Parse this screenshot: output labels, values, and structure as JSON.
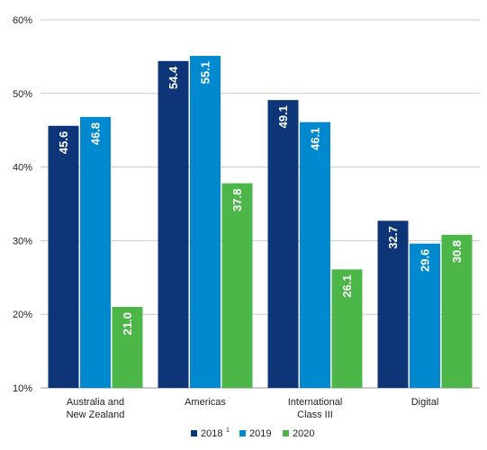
{
  "chart_data": {
    "type": "bar",
    "categories": [
      [
        "Australia and",
        "New Zealand"
      ],
      [
        "Americas"
      ],
      [
        "International",
        "Class III"
      ],
      [
        "Digital"
      ]
    ],
    "series": [
      {
        "name": "2018",
        "superscript": "1",
        "color": "#0d3578",
        "values": [
          45.6,
          54.4,
          49.1,
          32.7
        ]
      },
      {
        "name": "2019",
        "color": "#0089cf",
        "values": [
          46.8,
          55.1,
          46.1,
          29.6
        ]
      },
      {
        "name": "2020",
        "color": "#4cb748",
        "values": [
          21.0,
          37.8,
          26.1,
          30.8
        ]
      }
    ],
    "value_labels": [
      [
        "45.6",
        "54.4",
        "49.1",
        "32.7"
      ],
      [
        "46.8",
        "55.1",
        "46.1",
        "29.6"
      ],
      [
        "21.0",
        "37.8",
        "26.1",
        "30.8"
      ]
    ],
    "yticks": [
      {
        "value": 10,
        "label": "10%"
      },
      {
        "value": 20,
        "label": "20%"
      },
      {
        "value": 30,
        "label": "30%"
      },
      {
        "value": 40,
        "label": "40%"
      },
      {
        "value": 50,
        "label": "50%"
      },
      {
        "value": 60,
        "label": "60%"
      }
    ],
    "ylim": [
      10,
      60
    ],
    "grid": true,
    "legend_position": "bottom-center",
    "title": "",
    "xlabel": "",
    "ylabel": ""
  }
}
